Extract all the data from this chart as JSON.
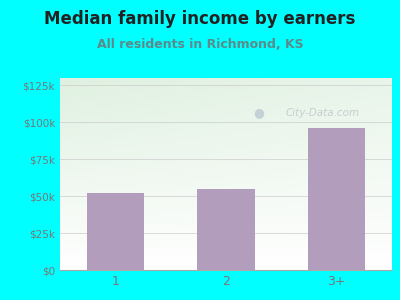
{
  "title": "Median family income by earners",
  "subtitle": "All residents in Richmond, KS",
  "categories": [
    "1",
    "2",
    "3+"
  ],
  "values": [
    52000,
    55000,
    96000
  ],
  "bar_color": "#b39dbd",
  "background_outer": "#00ffff",
  "background_inner_top_left": "#dff0e0",
  "background_inner_bottom_right": "#ffffff",
  "yticks": [
    0,
    25000,
    50000,
    75000,
    100000,
    125000
  ],
  "ytick_labels": [
    "$0",
    "$25k",
    "$50k",
    "$75k",
    "$100k",
    "$125k"
  ],
  "ylim": [
    0,
    130000
  ],
  "title_fontsize": 12,
  "subtitle_fontsize": 9,
  "title_color": "#222222",
  "subtitle_color": "#5a8a8a",
  "tick_color": "#777777",
  "axis_line_color": "#aaaaaa",
  "watermark_text": "City-Data.com",
  "watermark_color": "#c0c8cc"
}
